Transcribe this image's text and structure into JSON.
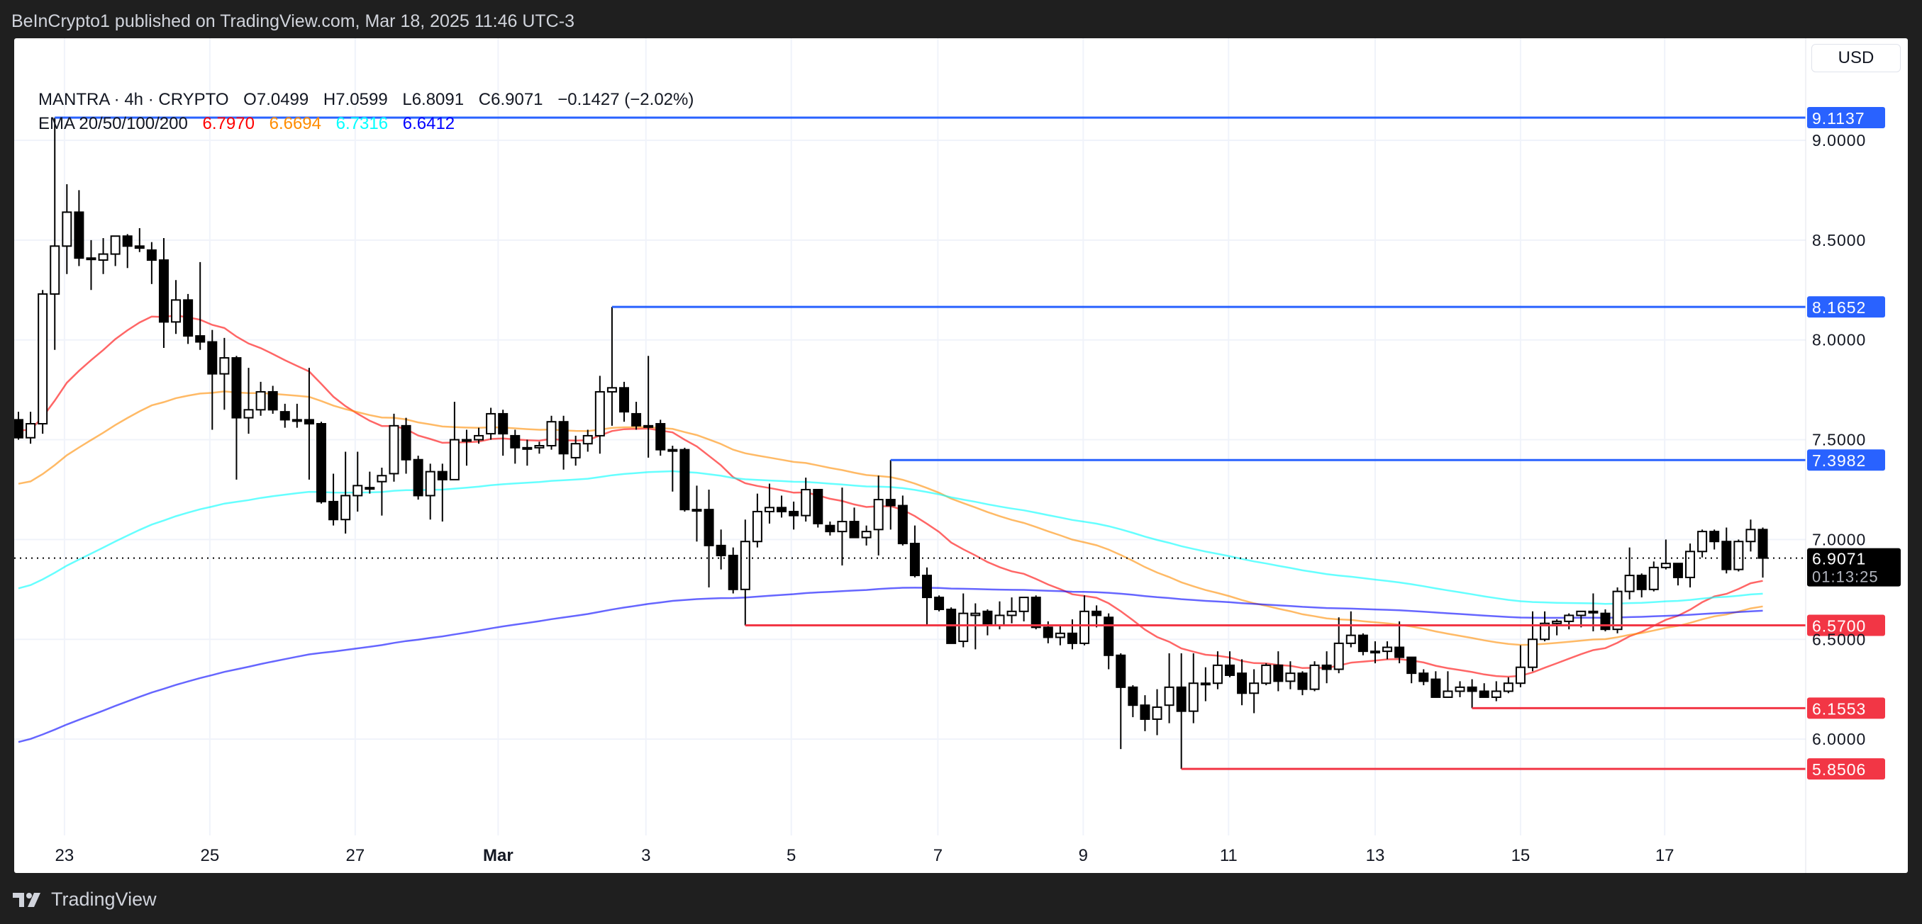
{
  "header": {
    "published": "BeInCrypto1 published on TradingView.com, Mar 18, 2025 11:46 UTC-3"
  },
  "legend": {
    "symbol_line": "MANTRA · 4h · CRYPTO",
    "open": "O7.0499",
    "high": "H7.0599",
    "low": "L6.8091",
    "close": "C6.9071",
    "change": "−0.1427 (−2.02%)",
    "ema_label": "EMA 20/50/100/200",
    "ema20": "6.7970",
    "ema50": "6.6694",
    "ema100": "6.7316",
    "ema200": "6.6412"
  },
  "currency_button": "USD",
  "footer": {
    "brand": "TradingView"
  },
  "colors": {
    "ema20": "#ff0000",
    "ema50": "#ff8c00",
    "ema100": "#00ffff",
    "ema200": "#0000ff",
    "resistance": "#2962ff",
    "support": "#f23645"
  },
  "chart_data": {
    "type": "candlestick",
    "title": "MANTRA · 4h · CRYPTO",
    "ylabel": "USD",
    "ylim": [
      5.55,
      9.4
    ],
    "grid": true,
    "y_ticks": [
      "9.0000",
      "8.5000",
      "8.0000",
      "7.5000",
      "7.0000",
      "6.5000",
      "6.0000"
    ],
    "x_labels": [
      {
        "label": "23",
        "index": 3.8
      },
      {
        "label": "25",
        "index": 15.8
      },
      {
        "label": "27",
        "index": 27.8
      },
      {
        "label": "Mar",
        "index": 39.6
      },
      {
        "label": "3",
        "index": 51.8
      },
      {
        "label": "5",
        "index": 63.8
      },
      {
        "label": "7",
        "index": 75.9
      },
      {
        "label": "9",
        "index": 87.9
      },
      {
        "label": "11",
        "index": 99.9
      },
      {
        "label": "13",
        "index": 112.0
      },
      {
        "label": "15",
        "index": 124.0
      },
      {
        "label": "17",
        "index": 135.9
      }
    ],
    "ohlc": [
      [
        7.6,
        7.64,
        7.5,
        7.51
      ],
      [
        7.51,
        7.64,
        7.48,
        7.58
      ],
      [
        7.58,
        8.25,
        7.53,
        8.23
      ],
      [
        8.23,
        9.1137,
        7.95,
        8.47
      ],
      [
        8.47,
        8.78,
        8.33,
        8.64
      ],
      [
        8.64,
        8.75,
        8.37,
        8.41
      ],
      [
        8.41,
        8.5,
        8.25,
        8.41
      ],
      [
        8.4,
        8.51,
        8.33,
        8.43
      ],
      [
        8.43,
        8.52,
        8.37,
        8.52
      ],
      [
        8.52,
        8.53,
        8.36,
        8.47
      ],
      [
        8.47,
        8.56,
        8.44,
        8.46
      ],
      [
        8.45,
        8.49,
        8.28,
        8.4
      ],
      [
        8.4,
        8.51,
        7.96,
        8.09
      ],
      [
        8.09,
        8.3,
        8.03,
        8.2
      ],
      [
        8.2,
        8.23,
        7.98,
        8.02
      ],
      [
        8.02,
        8.39,
        7.95,
        7.99
      ],
      [
        7.99,
        8.05,
        7.55,
        7.83
      ],
      [
        7.83,
        8.01,
        7.65,
        7.91
      ],
      [
        7.91,
        7.92,
        7.3,
        7.61
      ],
      [
        7.61,
        7.86,
        7.53,
        7.65
      ],
      [
        7.65,
        7.79,
        7.62,
        7.74
      ],
      [
        7.74,
        7.77,
        7.63,
        7.65
      ],
      [
        7.64,
        7.68,
        7.56,
        7.6
      ],
      [
        7.6,
        7.68,
        7.56,
        7.6
      ],
      [
        7.6,
        7.86,
        7.3,
        7.58
      ],
      [
        7.58,
        7.59,
        7.18,
        7.19
      ],
      [
        7.19,
        7.33,
        7.07,
        7.1
      ],
      [
        7.1,
        7.44,
        7.03,
        7.22
      ],
      [
        7.22,
        7.44,
        7.14,
        7.27
      ],
      [
        7.26,
        7.34,
        7.23,
        7.26
      ],
      [
        7.29,
        7.36,
        7.12,
        7.32
      ],
      [
        7.33,
        7.63,
        7.29,
        7.57
      ],
      [
        7.57,
        7.61,
        7.33,
        7.4
      ],
      [
        7.4,
        7.42,
        7.2,
        7.22
      ],
      [
        7.22,
        7.38,
        7.1,
        7.34
      ],
      [
        7.34,
        7.38,
        7.09,
        7.3
      ],
      [
        7.3,
        7.69,
        7.3,
        7.5
      ],
      [
        7.5,
        7.55,
        7.37,
        7.5
      ],
      [
        7.5,
        7.56,
        7.48,
        7.52
      ],
      [
        7.53,
        7.66,
        7.5,
        7.63
      ],
      [
        7.63,
        7.65,
        7.42,
        7.53
      ],
      [
        7.52,
        7.55,
        7.38,
        7.46
      ],
      [
        7.46,
        7.5,
        7.37,
        7.46
      ],
      [
        7.46,
        7.49,
        7.43,
        7.47
      ],
      [
        7.47,
        7.62,
        7.45,
        7.59
      ],
      [
        7.59,
        7.62,
        7.35,
        7.43
      ],
      [
        7.41,
        7.52,
        7.37,
        7.48
      ],
      [
        7.48,
        7.55,
        7.44,
        7.52
      ],
      [
        7.52,
        7.82,
        7.43,
        7.74
      ],
      [
        7.74,
        8.1652,
        7.57,
        7.76
      ],
      [
        7.76,
        7.79,
        7.59,
        7.64
      ],
      [
        7.63,
        7.69,
        7.55,
        7.57
      ],
      [
        7.57,
        7.92,
        7.41,
        7.57
      ],
      [
        7.58,
        7.6,
        7.42,
        7.45
      ],
      [
        7.45,
        7.47,
        7.24,
        7.45
      ],
      [
        7.45,
        7.46,
        7.14,
        7.15
      ],
      [
        7.15,
        7.27,
        6.99,
        7.15
      ],
      [
        7.15,
        7.25,
        6.76,
        6.97
      ],
      [
        6.97,
        7.05,
        6.85,
        6.92
      ],
      [
        6.92,
        6.96,
        6.73,
        6.75
      ],
      [
        6.75,
        7.1,
        6.57,
        6.99
      ],
      [
        6.99,
        7.23,
        6.96,
        7.14
      ],
      [
        7.14,
        7.28,
        7.08,
        7.16
      ],
      [
        7.16,
        7.22,
        7.11,
        7.14
      ],
      [
        7.14,
        7.19,
        7.05,
        7.12
      ],
      [
        7.12,
        7.31,
        7.09,
        7.25
      ],
      [
        7.25,
        7.25,
        7.06,
        7.08
      ],
      [
        7.07,
        7.09,
        7.02,
        7.04
      ],
      [
        7.04,
        7.26,
        6.87,
        7.09
      ],
      [
        7.09,
        7.16,
        7.01,
        7.01
      ],
      [
        7.01,
        7.07,
        6.97,
        7.04
      ],
      [
        7.05,
        7.32,
        6.92,
        7.2
      ],
      [
        7.2,
        7.3982,
        7.05,
        7.17
      ],
      [
        7.17,
        7.22,
        6.97,
        6.98
      ],
      [
        6.98,
        7.07,
        6.81,
        6.82
      ],
      [
        6.82,
        6.86,
        6.57,
        6.71
      ],
      [
        6.71,
        6.72,
        6.64,
        6.65
      ],
      [
        6.65,
        6.66,
        6.48,
        6.48
      ],
      [
        6.49,
        6.73,
        6.46,
        6.63
      ],
      [
        6.62,
        6.68,
        6.45,
        6.63
      ],
      [
        6.64,
        6.65,
        6.52,
        6.57
      ],
      [
        6.57,
        6.69,
        6.55,
        6.62
      ],
      [
        6.62,
        6.71,
        6.58,
        6.64
      ],
      [
        6.64,
        6.71,
        6.59,
        6.71
      ],
      [
        6.71,
        6.72,
        6.55,
        6.56
      ],
      [
        6.56,
        6.59,
        6.48,
        6.51
      ],
      [
        6.51,
        6.57,
        6.47,
        6.53
      ],
      [
        6.53,
        6.6,
        6.45,
        6.48
      ],
      [
        6.48,
        6.72,
        6.47,
        6.64
      ],
      [
        6.64,
        6.67,
        6.56,
        6.62
      ],
      [
        6.61,
        6.63,
        6.35,
        6.42
      ],
      [
        6.42,
        6.43,
        5.95,
        6.26
      ],
      [
        6.26,
        6.27,
        6.11,
        6.17
      ],
      [
        6.17,
        6.22,
        6.04,
        6.1
      ],
      [
        6.1,
        6.25,
        6.02,
        6.16
      ],
      [
        6.17,
        6.43,
        6.08,
        6.26
      ],
      [
        6.26,
        6.43,
        5.8506,
        6.14
      ],
      [
        6.14,
        6.43,
        6.08,
        6.28
      ],
      [
        6.28,
        6.36,
        6.19,
        6.28
      ],
      [
        6.28,
        6.44,
        6.25,
        6.37
      ],
      [
        6.37,
        6.44,
        6.31,
        6.32
      ],
      [
        6.33,
        6.4,
        6.17,
        6.23
      ],
      [
        6.23,
        6.35,
        6.13,
        6.28
      ],
      [
        6.28,
        6.38,
        6.27,
        6.37
      ],
      [
        6.37,
        6.44,
        6.24,
        6.29
      ],
      [
        6.29,
        6.39,
        6.25,
        6.33
      ],
      [
        6.33,
        6.34,
        6.22,
        6.25
      ],
      [
        6.25,
        6.39,
        6.24,
        6.37
      ],
      [
        6.37,
        6.44,
        6.28,
        6.35
      ],
      [
        6.35,
        6.61,
        6.33,
        6.48
      ],
      [
        6.48,
        6.64,
        6.46,
        6.52
      ],
      [
        6.52,
        6.53,
        6.42,
        6.44
      ],
      [
        6.44,
        6.49,
        6.38,
        6.44
      ],
      [
        6.44,
        6.49,
        6.4,
        6.46
      ],
      [
        6.46,
        6.59,
        6.38,
        6.41
      ],
      [
        6.41,
        6.41,
        6.28,
        6.33
      ],
      [
        6.33,
        6.35,
        6.27,
        6.29
      ],
      [
        6.3,
        6.34,
        6.21,
        6.21
      ],
      [
        6.21,
        6.34,
        6.21,
        6.24
      ],
      [
        6.24,
        6.29,
        6.21,
        6.26
      ],
      [
        6.26,
        6.3,
        6.1553,
        6.24
      ],
      [
        6.24,
        6.28,
        6.21,
        6.21
      ],
      [
        6.21,
        6.29,
        6.19,
        6.24
      ],
      [
        6.24,
        6.31,
        6.23,
        6.28
      ],
      [
        6.28,
        6.47,
        6.26,
        6.36
      ],
      [
        6.36,
        6.64,
        6.34,
        6.5
      ],
      [
        6.5,
        6.64,
        6.49,
        6.58
      ],
      [
        6.58,
        6.6,
        6.52,
        6.59
      ],
      [
        6.59,
        6.63,
        6.55,
        6.62
      ],
      [
        6.62,
        6.64,
        6.56,
        6.64
      ],
      [
        6.64,
        6.73,
        6.54,
        6.64
      ],
      [
        6.63,
        6.65,
        6.54,
        6.55
      ],
      [
        6.55,
        6.76,
        6.53,
        6.74
      ],
      [
        6.74,
        6.96,
        6.7,
        6.82
      ],
      [
        6.82,
        6.83,
        6.71,
        6.75
      ],
      [
        6.75,
        6.89,
        6.74,
        6.86
      ],
      [
        6.86,
        7.0,
        6.85,
        6.88
      ],
      [
        6.88,
        6.88,
        6.77,
        6.81
      ],
      [
        6.81,
        6.98,
        6.76,
        6.94
      ],
      [
        6.94,
        7.05,
        6.91,
        7.04
      ],
      [
        7.04,
        7.05,
        6.95,
        6.99
      ],
      [
        6.99,
        7.06,
        6.83,
        6.85
      ],
      [
        6.85,
        7.0,
        6.84,
        6.99
      ],
      [
        6.99,
        7.1,
        6.94,
        7.05
      ],
      [
        7.0499,
        7.0599,
        6.8091,
        6.9071
      ]
    ],
    "ema_series": [
      {
        "name": "EMA 20",
        "period": 20,
        "seed": 7.55,
        "color": "#ff0000"
      },
      {
        "name": "EMA 50",
        "period": 50,
        "seed": 7.27,
        "color": "#ff8c00"
      },
      {
        "name": "EMA 100",
        "period": 100,
        "seed": 6.74,
        "color": "#00ffff"
      },
      {
        "name": "EMA 200",
        "period": 200,
        "seed": 5.97,
        "color": "#0000ff"
      }
    ],
    "levels": [
      {
        "label": "9.1137",
        "value": 9.1137,
        "from_index": 3,
        "kind": "resistance"
      },
      {
        "label": "8.1652",
        "value": 8.1652,
        "from_index": 49,
        "kind": "resistance"
      },
      {
        "label": "7.3982",
        "value": 7.3982,
        "from_index": 72,
        "kind": "resistance"
      },
      {
        "label": "6.5700",
        "value": 6.57,
        "from_index": 60,
        "kind": "support"
      },
      {
        "label": "6.1553",
        "value": 6.1553,
        "from_index": 120,
        "kind": "support"
      },
      {
        "label": "5.8506",
        "value": 5.8506,
        "from_index": 96,
        "kind": "support"
      }
    ],
    "last_price": {
      "label": "6.9071",
      "value": 6.9071,
      "countdown": "01:13:25"
    }
  }
}
